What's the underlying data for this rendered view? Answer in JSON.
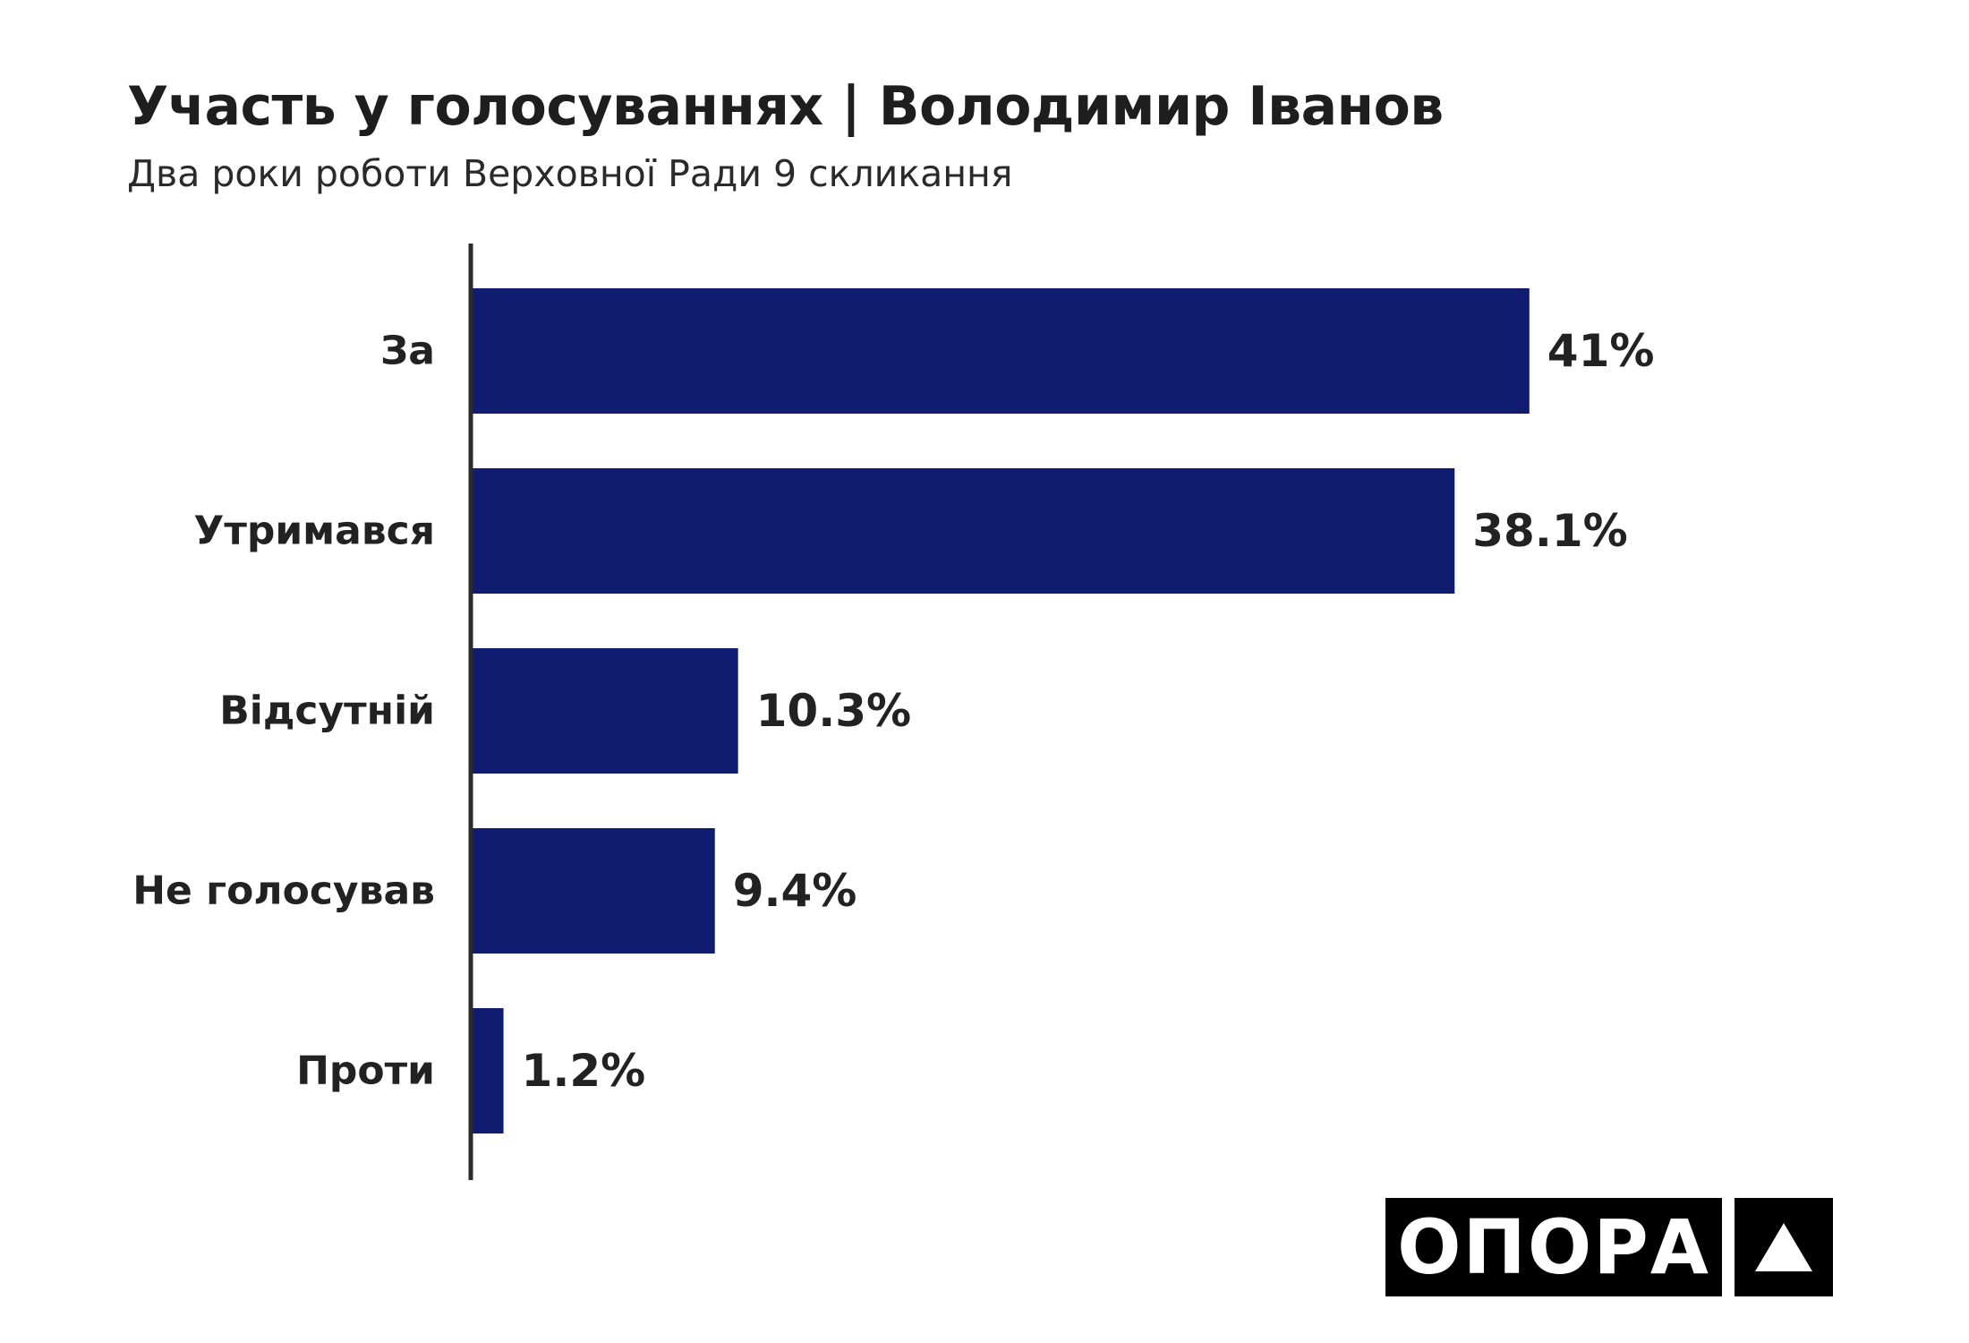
{
  "title": "Участь у голосуваннях | Володимир Іванов",
  "subtitle": "Два роки роботи Верховної Ради 9 скликання",
  "logo": {
    "text": "ОПОРА",
    "icon": "triangle-up-icon"
  },
  "colors": {
    "bar": "#0f1c70",
    "axis": "#2b2b2b",
    "text": "#222222",
    "logo_bg": "#000000"
  },
  "chart_data": {
    "type": "bar",
    "orientation": "horizontal",
    "title": "Участь у голосуваннях | Володимир Іванов",
    "subtitle": "Два роки роботи Верховної Ради 9 скликання",
    "categories": [
      "За",
      "Утримався",
      "Відсутній",
      "Не голосував",
      "Проти"
    ],
    "values": [
      41,
      38.1,
      10.3,
      9.4,
      1.2
    ],
    "value_labels": [
      "41%",
      "38.1%",
      "10.3%",
      "9.4%",
      "1.2%"
    ],
    "unit": "%",
    "xlim": [
      0,
      50
    ],
    "grid": false,
    "legend": "none"
  }
}
